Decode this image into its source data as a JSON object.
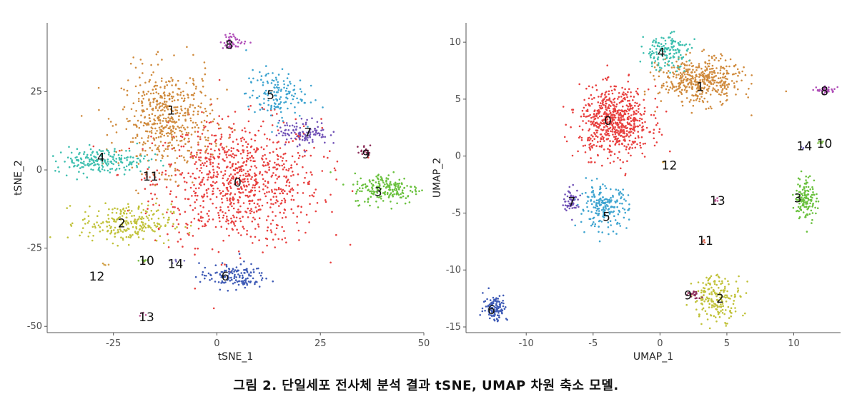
{
  "caption": "그림 2. 단일세포 전사체 분석 결과 tSNE, UMAP 차원 축소 모델.",
  "chart_data": [
    {
      "type": "scatter",
      "xlabel": "tSNE_1",
      "ylabel": "tSNE_2",
      "xlim": [
        -41,
        50
      ],
      "ylim": [
        -52,
        47
      ],
      "xticks": [
        -25,
        0,
        25,
        50
      ],
      "yticks": [
        25,
        0,
        -25,
        -50
      ],
      "grid": false,
      "legend": "none",
      "clusters": [
        {
          "label": "0",
          "color": "#e8403f",
          "cx": 5,
          "cy": -4,
          "sx": 10,
          "sy": 10,
          "n": 900,
          "label_x": 5,
          "label_y": -4
        },
        {
          "label": "1",
          "color": "#d08b3e",
          "cx": -12,
          "cy": 16,
          "sx": 5.5,
          "sy": 8,
          "n": 520,
          "label_x": -11,
          "label_y": 19
        },
        {
          "label": "2",
          "color": "#c1c23a",
          "cx": -22,
          "cy": -17,
          "sx": 5.5,
          "sy": 3,
          "n": 240,
          "label_x": -23,
          "label_y": -17
        },
        {
          "label": "3",
          "color": "#6ac13e",
          "cx": 41,
          "cy": -6,
          "sx": 4,
          "sy": 2.5,
          "n": 190,
          "label_x": 39,
          "label_y": -7
        },
        {
          "label": "4",
          "color": "#3dbfaf",
          "cx": -28,
          "cy": 3,
          "sx": 5.5,
          "sy": 2,
          "n": 200,
          "label_x": -28,
          "label_y": 4
        },
        {
          "label": "5",
          "color": "#3ea4d0",
          "cx": 14,
          "cy": 24,
          "sx": 3.5,
          "sy": 4,
          "n": 150,
          "label_x": 13,
          "label_y": 24
        },
        {
          "label": "6",
          "color": "#3f5bb6",
          "cx": 4,
          "cy": -34,
          "sx": 4,
          "sy": 2,
          "n": 140,
          "label_x": 2,
          "label_y": -34
        },
        {
          "label": "7",
          "color": "#7253b7",
          "cx": 21,
          "cy": 12,
          "sx": 3,
          "sy": 2,
          "n": 110,
          "label_x": 22,
          "label_y": 12
        },
        {
          "label": "8",
          "color": "#b04fb8",
          "cx": 4,
          "cy": 41,
          "sx": 1.6,
          "sy": 1.2,
          "n": 45,
          "label_x": 3,
          "label_y": 40
        },
        {
          "label": "9",
          "color": "#8e2f5a",
          "cx": 36,
          "cy": 6,
          "sx": 1,
          "sy": 1,
          "n": 18,
          "label_x": 36,
          "label_y": 5
        },
        {
          "label": "10",
          "color": "#7fbf4a",
          "cx": -18,
          "cy": -29,
          "sx": 1,
          "sy": 0.4,
          "n": 8,
          "label_x": -17,
          "label_y": -29
        },
        {
          "label": "11",
          "color": "#e06f5a",
          "cx": -16,
          "cy": -2,
          "sx": 0.8,
          "sy": 0.4,
          "n": 5,
          "label_x": -16,
          "label_y": -2
        },
        {
          "label": "12",
          "color": "#d2a24a",
          "cx": -27,
          "cy": -30,
          "sx": 0.5,
          "sy": 0.5,
          "n": 4,
          "label_x": -29,
          "label_y": -34
        },
        {
          "label": "13",
          "color": "#c05c9a",
          "cx": -18,
          "cy": -46,
          "sx": 0.5,
          "sy": 0.5,
          "n": 4,
          "label_x": -17,
          "label_y": -47
        },
        {
          "label": "14",
          "color": "#7a6fbf",
          "cx": -10,
          "cy": -29,
          "sx": 1,
          "sy": 0.4,
          "n": 6,
          "label_x": -10,
          "label_y": -30
        }
      ]
    },
    {
      "type": "scatter",
      "xlabel": "UMAP_1",
      "ylabel": "UMAP_2",
      "xlim": [
        -14.5,
        13.5
      ],
      "ylim": [
        -15.5,
        11.7
      ],
      "xticks": [
        -10,
        -5,
        0,
        5,
        10
      ],
      "yticks": [
        10,
        5,
        0,
        -5,
        -10,
        -15
      ],
      "grid": false,
      "legend": "none",
      "clusters": [
        {
          "label": "0",
          "color": "#e8403f",
          "cx": -3.4,
          "cy": 3,
          "sx": 1.3,
          "sy": 1.5,
          "n": 650,
          "label_x": -3.9,
          "label_y": 3.1
        },
        {
          "label": "1",
          "color": "#d08b3e",
          "cx": 3,
          "cy": 6.6,
          "sx": 1.5,
          "sy": 1,
          "n": 450,
          "label_x": 3,
          "label_y": 6.1
        },
        {
          "label": "2",
          "color": "#c1c23a",
          "cx": 4.3,
          "cy": -12.4,
          "sx": 0.9,
          "sy": 1,
          "n": 190,
          "label_x": 4.5,
          "label_y": -12.5
        },
        {
          "label": "3",
          "color": "#6ac13e",
          "cx": 10.9,
          "cy": -3.7,
          "sx": 0.4,
          "sy": 1,
          "n": 130,
          "label_x": 10.3,
          "label_y": -3.7
        },
        {
          "label": "4",
          "color": "#3dbfaf",
          "cx": 0.4,
          "cy": 9.2,
          "sx": 0.9,
          "sy": 0.8,
          "n": 150,
          "label_x": 0.1,
          "label_y": 9.1
        },
        {
          "label": "5",
          "color": "#3ea4d0",
          "cx": -4.2,
          "cy": -4.5,
          "sx": 0.9,
          "sy": 0.9,
          "n": 200,
          "label_x": -4,
          "label_y": -5.3
        },
        {
          "label": "6",
          "color": "#3f5bb6",
          "cx": -12.3,
          "cy": -13.3,
          "sx": 0.45,
          "sy": 0.6,
          "n": 110,
          "label_x": -12.6,
          "label_y": -13.5
        },
        {
          "label": "7",
          "color": "#7253b7",
          "cx": -6.6,
          "cy": -3.9,
          "sx": 0.3,
          "sy": 0.5,
          "n": 60,
          "label_x": -6.6,
          "label_y": -4
        },
        {
          "label": "8",
          "color": "#b04fb8",
          "cx": 12.4,
          "cy": 5.8,
          "sx": 0.35,
          "sy": 0.15,
          "n": 40,
          "label_x": 12.3,
          "label_y": 5.7
        },
        {
          "label": "9",
          "color": "#8e2f5a",
          "cx": 2.5,
          "cy": -12.2,
          "sx": 0.3,
          "sy": 0.2,
          "n": 18,
          "label_x": 2.1,
          "label_y": -12.2
        },
        {
          "label": "10",
          "color": "#7fbf4a",
          "cx": 12,
          "cy": 1.2,
          "sx": 0.12,
          "sy": 0.15,
          "n": 10,
          "label_x": 12.3,
          "label_y": 1.1
        },
        {
          "label": "11",
          "color": "#e06f5a",
          "cx": 3.3,
          "cy": -7.5,
          "sx": 0.1,
          "sy": 0.1,
          "n": 4,
          "label_x": 3.4,
          "label_y": -7.4
        },
        {
          "label": "12",
          "color": "#d2a24a",
          "cx": 0.2,
          "cy": -0.5,
          "sx": 0.1,
          "sy": 0.1,
          "n": 4,
          "label_x": 0.7,
          "label_y": -0.8
        },
        {
          "label": "13",
          "color": "#c05c9a",
          "cx": 4.3,
          "cy": -3.9,
          "sx": 0.1,
          "sy": 0.1,
          "n": 4,
          "label_x": 4.3,
          "label_y": -3.9
        },
        {
          "label": "14",
          "color": "#7a6fbf",
          "cx": 10.8,
          "cy": 0.8,
          "sx": 0.1,
          "sy": 0.1,
          "n": 4,
          "label_x": 10.8,
          "label_y": 0.9
        }
      ]
    }
  ]
}
